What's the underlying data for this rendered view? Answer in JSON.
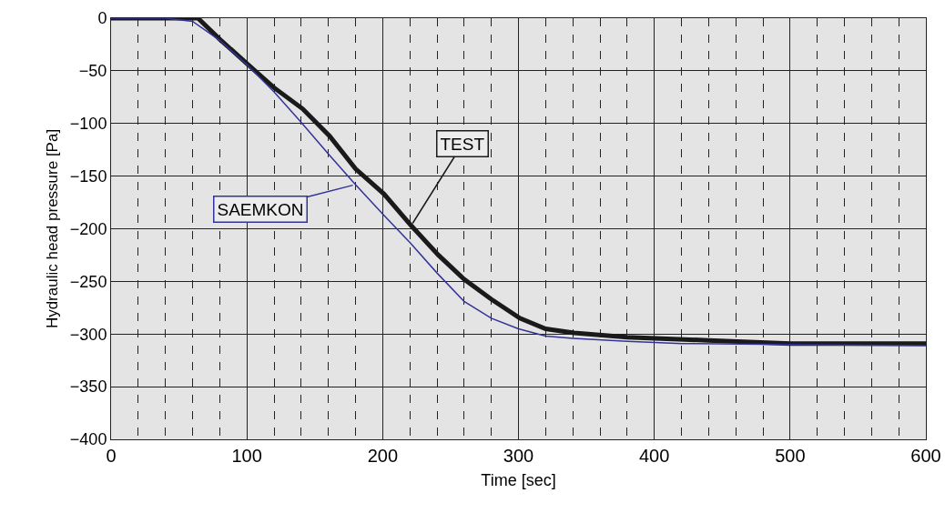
{
  "chart_data": {
    "type": "line",
    "xlabel": "Time [sec]",
    "ylabel": "Hydraulic head pressure [Pa]",
    "xlim": [
      0,
      600
    ],
    "ylim": [
      -400,
      0
    ],
    "xticks": [
      0,
      {
        "value": 20,
        "label": null
      },
      {
        "value": 40,
        "label": null
      },
      {
        "value": 60,
        "label": null
      },
      {
        "value": 80,
        "label": null
      },
      100,
      {
        "value": 120,
        "label": null
      },
      {
        "value": 140,
        "label": null
      },
      {
        "value": 160,
        "label": null
      },
      {
        "value": 180,
        "label": null
      },
      200,
      {
        "value": 220,
        "label": null
      },
      {
        "value": 240,
        "label": null
      },
      {
        "value": 260,
        "label": null
      },
      {
        "value": 280,
        "label": null
      },
      300,
      {
        "value": 320,
        "label": null
      },
      {
        "value": 340,
        "label": null
      },
      {
        "value": 360,
        "label": null
      },
      {
        "value": 380,
        "label": null
      },
      400,
      {
        "value": 420,
        "label": null
      },
      {
        "value": 440,
        "label": null
      },
      {
        "value": 460,
        "label": null
      },
      {
        "value": 480,
        "label": null
      },
      500,
      {
        "value": 520,
        "label": null
      },
      {
        "value": 540,
        "label": null
      },
      {
        "value": 560,
        "label": null
      },
      {
        "value": 580,
        "label": null
      },
      600
    ],
    "yticks": [
      0,
      -50,
      -100,
      -150,
      -200,
      -250,
      -300,
      -350,
      -400
    ],
    "grid": true,
    "legend": false,
    "marker": "none",
    "line_style": "solid",
    "series": [
      {
        "name": "TEST",
        "color": "#1a1a1a",
        "x": [
          0,
          40,
          64,
          80,
          100,
          120,
          141,
          161,
          180,
          201,
          221,
          241,
          260,
          280,
          301,
          320,
          341,
          380,
          440,
          500,
          600
        ],
        "values": [
          0,
          0,
          0,
          -20,
          -43,
          -66,
          -86,
          -112,
          -143,
          -167,
          -197,
          -225,
          -248,
          -267,
          -285,
          -295,
          -299,
          -303,
          -306,
          -309,
          -309
        ]
      },
      {
        "name": "SAEMKON",
        "color": "#333399",
        "x": [
          0,
          40,
          60,
          80,
          100,
          120,
          140,
          160,
          180,
          200,
          220,
          240,
          260,
          280,
          300,
          320,
          340,
          380,
          420,
          500,
          600
        ],
        "values": [
          0,
          0,
          -3,
          -21,
          -44,
          -70,
          -99,
          -129,
          -158,
          -186,
          -213,
          -242,
          -269,
          -285,
          -295,
          -302,
          -304,
          -307,
          -309,
          -310,
          -311
        ]
      }
    ]
  }
}
